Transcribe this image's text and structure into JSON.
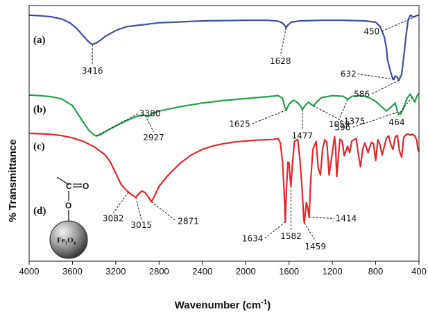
{
  "chart_data": {
    "type": "line",
    "title": "",
    "xlabel": "Wavenumber (cm",
    "xlabel_sup": "-1",
    "xlabel_close": ")",
    "ylabel": "% Transmittance",
    "xlim": [
      4000,
      400
    ],
    "x_reversed": true,
    "x_ticks": [
      "4000",
      "3600",
      "3200",
      "2800",
      "2400",
      "2000",
      "1600",
      "1200",
      "800",
      "400"
    ],
    "grid": false,
    "legend": "none",
    "panel_labels": [
      "(a)",
      "(b)",
      "(c)",
      "(d)"
    ],
    "inset": {
      "formula_main": "Fe",
      "formula_sub1": "3",
      "formula_mid": "O",
      "formula_sub2": "4",
      "group_c": "C",
      "group_o": "O",
      "link_o": "O"
    },
    "series": [
      {
        "label": "(a)",
        "color": "#3b4ea5",
        "x": [
          4000,
          3900,
          3800,
          3700,
          3620,
          3560,
          3500,
          3450,
          3416,
          3380,
          3340,
          3300,
          3200,
          3100,
          2800,
          2400,
          2000,
          1800,
          1700,
          1660,
          1640,
          1628,
          1610,
          1580,
          1500,
          1300,
          1100,
          900,
          800,
          760,
          720,
          700,
          690,
          660,
          645,
          632,
          620,
          600,
          586,
          560,
          540,
          520,
          500,
          480,
          450,
          420,
          400
        ],
        "y": [
          97,
          96.8,
          96.5,
          95.8,
          94.5,
          92.8,
          90.5,
          88.6,
          87.8,
          88.3,
          89.2,
          90.3,
          92.2,
          93.4,
          94.6,
          95.2,
          95.4,
          95.4,
          95.1,
          94.5,
          93.8,
          93.0,
          93.9,
          94.8,
          95.2,
          95.4,
          95.4,
          95.2,
          94.8,
          93.5,
          90.2,
          86.5,
          83.0,
          79.0,
          77.4,
          76.9,
          78.0,
          77.5,
          76.6,
          78.5,
          84.0,
          90.5,
          95.5,
          97.0,
          96.4,
          96.9,
          97
        ]
      },
      {
        "label": "(b)",
        "color": "#22a048",
        "x": [
          4000,
          3900,
          3800,
          3700,
          3600,
          3500,
          3450,
          3400,
          3380,
          3340,
          3300,
          3200,
          3100,
          3000,
          2950,
          2927,
          2900,
          2860,
          2800,
          2600,
          2400,
          2200,
          2000,
          1900,
          1800,
          1700,
          1660,
          1640,
          1625,
          1600,
          1560,
          1520,
          1500,
          1477,
          1450,
          1420,
          1400,
          1375,
          1340,
          1300,
          1200,
          1100,
          1059,
          1020,
          950,
          900,
          850,
          800,
          750,
          700,
          650,
          620,
          596,
          570,
          540,
          510,
          480,
          464,
          440,
          420,
          400
        ],
        "y": [
          72,
          71.8,
          71.5,
          70.8,
          68.7,
          63.5,
          61.0,
          59.5,
          59.2,
          59.6,
          60.5,
          62.3,
          64.0,
          65.4,
          65.8,
          65.6,
          65.3,
          66.2,
          67.0,
          68.4,
          69.5,
          70.3,
          70.9,
          71.2,
          71.5,
          71.8,
          71.0,
          68.3,
          67.3,
          69.2,
          70.4,
          69.6,
          68.8,
          67.5,
          68.8,
          69.8,
          69.2,
          68.6,
          70.0,
          71.2,
          71.8,
          71.6,
          70.6,
          71.6,
          71.8,
          71.6,
          71.0,
          70.0,
          68.5,
          67.0,
          68.5,
          69.5,
          66.6,
          66.0,
          68.2,
          71.0,
          72.3,
          71.3,
          69.8,
          71.6,
          72.5
        ]
      },
      {
        "label": "(c)",
        "color": "#e5262a",
        "x": [
          4000,
          3900,
          3800,
          3700,
          3600,
          3500,
          3400,
          3300,
          3250,
          3200,
          3150,
          3100,
          3082,
          3050,
          3030,
          3015,
          2990,
          2960,
          2930,
          2900,
          2871,
          2840,
          2800,
          2700,
          2600,
          2500,
          2400,
          2300,
          2200,
          2100,
          2000,
          1900,
          1800,
          1750,
          1700,
          1680,
          1660,
          1645,
          1634,
          1625,
          1610,
          1600,
          1590,
          1582,
          1570,
          1550,
          1520,
          1500,
          1480,
          1465,
          1459,
          1450,
          1440,
          1430,
          1414,
          1400,
          1380,
          1350,
          1330,
          1310,
          1290,
          1270,
          1250,
          1230,
          1200,
          1180,
          1170,
          1160,
          1130,
          1110,
          1090,
          1060,
          1040,
          1020,
          980,
          960,
          940,
          920,
          900,
          870,
          840,
          820,
          800,
          780,
          760,
          740,
          700,
          680,
          660,
          640,
          620,
          600,
          580,
          560,
          540,
          520,
          500,
          480,
          460,
          440,
          420,
          410,
          400
        ],
        "y": [
          60,
          59.9,
          59.7,
          59.3,
          58.6,
          57.5,
          55.8,
          53.3,
          51.0,
          47.5,
          44.0,
          42.1,
          41.6,
          40.7,
          40.3,
          40.0,
          41.0,
          42.0,
          41.5,
          40.1,
          38.6,
          40.5,
          43.5,
          47.5,
          50.8,
          53.3,
          55.0,
          56.1,
          56.8,
          57.3,
          57.6,
          57.9,
          58.0,
          58.1,
          58.3,
          57.0,
          51.0,
          42.0,
          32.3,
          42.0,
          51.0,
          50.8,
          46.0,
          43.5,
          50.0,
          57.5,
          58.1,
          52.0,
          43.0,
          34.0,
          32.0,
          35.0,
          38.3,
          37.2,
          33.8,
          45.0,
          55.0,
          57.5,
          49.0,
          47.0,
          55.2,
          58.0,
          57.2,
          47.0,
          54.0,
          59.0,
          56.0,
          46.5,
          58.2,
          57.6,
          53.0,
          56.0,
          54.0,
          57.6,
          58.4,
          53.5,
          49.5,
          55.0,
          57.0,
          54.0,
          57.2,
          56.8,
          51.5,
          58.0,
          56.5,
          53.2,
          58.6,
          59.2,
          56.5,
          55.0,
          58.8,
          59.4,
          54.5,
          52.5,
          58.8,
          59.6,
          59.8,
          59.5,
          59.7,
          59.3,
          57.8,
          55.0,
          54.3
        ]
      }
    ],
    "annotations": [
      {
        "text": "3416",
        "series": 0,
        "x": 3416,
        "y": 87.8,
        "dx": 0,
        "dy": 30
      },
      {
        "text": "1628",
        "series": 0,
        "x": 1628,
        "y": 93.0,
        "dx": -8,
        "dy": 40
      },
      {
        "text": "450",
        "series": 0,
        "x": 430,
        "y": 96.6,
        "dx": -50,
        "dy": 22
      },
      {
        "text": "632",
        "series": 0,
        "x": 632,
        "y": 76.9,
        "dx": -52,
        "dy": -8
      },
      {
        "text": "586",
        "series": 0,
        "x": 586,
        "y": 76.6,
        "dx": -40,
        "dy": 20
      },
      {
        "text": "3380",
        "series": 1,
        "x": 3380,
        "y": 59.2,
        "dx": 60,
        "dy": -32
      },
      {
        "text": "2927",
        "series": 1,
        "x": 2927,
        "y": 65.6,
        "dx": 12,
        "dy": 24
      },
      {
        "text": "1625",
        "series": 1,
        "x": 1625,
        "y": 67.3,
        "dx": -50,
        "dy": 20
      },
      {
        "text": "1477",
        "series": 1,
        "x": 1477,
        "y": 67.5,
        "dx": 0,
        "dy": 30
      },
      {
        "text": "1375",
        "series": 1,
        "x": 1375,
        "y": 68.6,
        "dx": 42,
        "dy": 22
      },
      {
        "text": "1059",
        "series": 1,
        "x": 1059,
        "y": 70.6,
        "dx": -12,
        "dy": 28
      },
      {
        "text": "596",
        "series": 1,
        "x": 596,
        "y": 66.6,
        "dx": -66,
        "dy": 22
      },
      {
        "text": "464",
        "series": 1,
        "x": 464,
        "y": 71.3,
        "dx": -22,
        "dy": 28
      },
      {
        "text": "3082",
        "series": 2,
        "x": 3082,
        "y": 41.6,
        "dx": -22,
        "dy": 30
      },
      {
        "text": "3015",
        "series": 2,
        "x": 3015,
        "y": 40.0,
        "dx": 8,
        "dy": 32
      },
      {
        "text": "2871",
        "series": 2,
        "x": 2871,
        "y": 38.6,
        "dx": 36,
        "dy": 28
      },
      {
        "text": "1634",
        "series": 2,
        "x": 1634,
        "y": 32.3,
        "dx": -30,
        "dy": 24
      },
      {
        "text": "1582",
        "series": 2,
        "x": 1582,
        "y": 43.5,
        "dx": 0,
        "dy": 64
      },
      {
        "text": "1459",
        "series": 2,
        "x": 1459,
        "y": 32.0,
        "dx": 16,
        "dy": 26
      },
      {
        "text": "1414",
        "series": 2,
        "x": 1414,
        "y": 33.8,
        "dx": 36,
        "dy": 2
      }
    ]
  }
}
